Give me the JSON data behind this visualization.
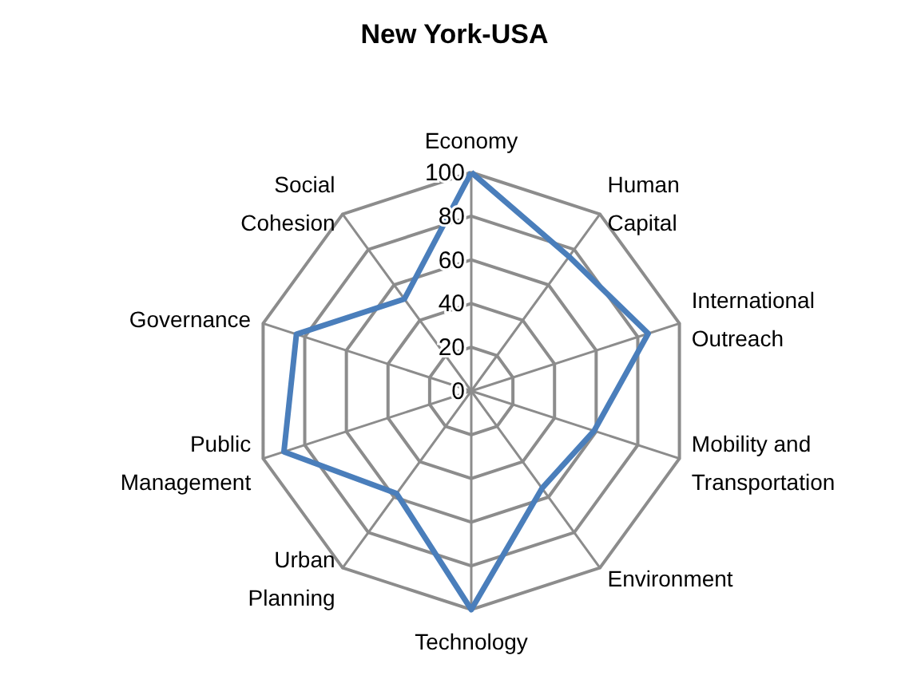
{
  "chart_data": {
    "type": "radar",
    "title": "New York-USA",
    "categories": [
      "Economy",
      "Human\nCapital",
      "International\nOutreach",
      "Mobility and\nTransportation",
      "Environment",
      "Technology",
      "Urban\nPlanning",
      "Public\nManagement",
      "Governance",
      "Social\nCohesion"
    ],
    "series": [
      {
        "color": "#4a7ebb",
        "values": [
          100,
          76,
          85,
          59,
          55,
          100,
          58,
          90,
          84,
          52
        ]
      }
    ],
    "ylim": [
      0,
      100
    ],
    "yticks": [
      0,
      20,
      40,
      60,
      80,
      100
    ],
    "marker": "none"
  }
}
